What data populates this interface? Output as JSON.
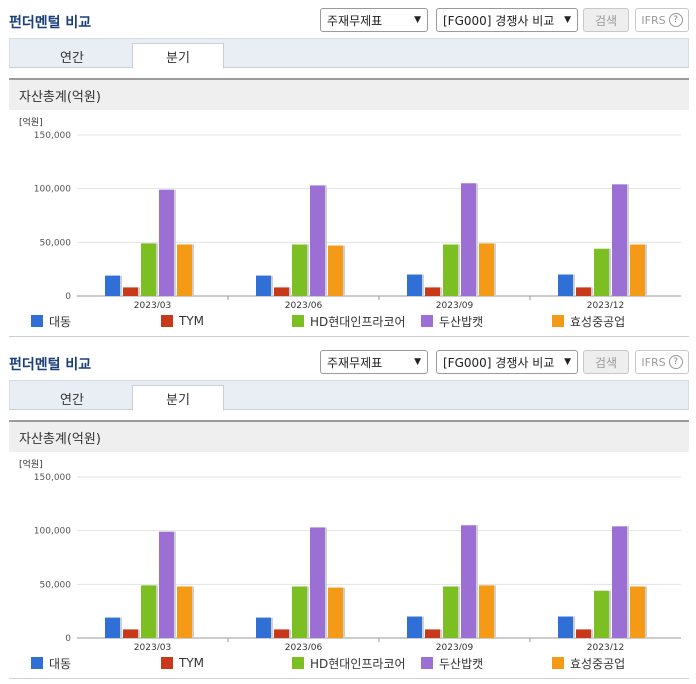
{
  "panels": [
    {
      "title": "펀더멘털 비교",
      "select_statement": "주재무제표",
      "select_compare": "[FG000] 경쟁사 비교",
      "search_label": "검색",
      "ifrs_label": "IFRS",
      "help_glyph": "?",
      "tabs": [
        {
          "label": "연간"
        },
        {
          "label": "분기"
        }
      ],
      "active_tab": 1,
      "section_title": "자산총계(억원)"
    },
    {
      "title": "펀더멘털 비교",
      "select_statement": "주재무제표",
      "select_compare": "[FG000] 경쟁사 비교",
      "search_label": "검색",
      "ifrs_label": "IFRS",
      "help_glyph": "?",
      "tabs": [
        {
          "label": "연간"
        },
        {
          "label": "분기"
        }
      ],
      "active_tab": 1,
      "section_title": "자산총계(억원)"
    }
  ],
  "chart_data": [
    {
      "type": "bar",
      "ylabel": "[억원]",
      "ylim": [
        0,
        150000
      ],
      "yticks": [
        "0",
        "50,000",
        "100,000",
        "150,000"
      ],
      "categories": [
        "2023/03",
        "2023/06",
        "2023/09",
        "2023/12"
      ],
      "series": [
        {
          "name": "대동",
          "color": "#2f6fd6",
          "values": [
            19000,
            19000,
            20000,
            20000
          ]
        },
        {
          "name": "TYM",
          "color": "#c8391a",
          "values": [
            8000,
            8000,
            8000,
            8000
          ]
        },
        {
          "name": "HD현대인프라코어",
          "color": "#7cbf22",
          "values": [
            49000,
            48000,
            48000,
            44000
          ]
        },
        {
          "name": "두산밥캣",
          "color": "#9b6fd3",
          "values": [
            99000,
            103000,
            105000,
            104000
          ]
        },
        {
          "name": "효성중공업",
          "color": "#f59a17",
          "values": [
            48000,
            47000,
            49000,
            48000
          ]
        }
      ],
      "legend_position": "bottom",
      "grid": true
    },
    {
      "type": "bar",
      "ylabel": "[억원]",
      "ylim": [
        0,
        150000
      ],
      "yticks": [
        "0",
        "50,000",
        "100,000",
        "150,000"
      ],
      "categories": [
        "2023/03",
        "2023/06",
        "2023/09",
        "2023/12"
      ],
      "series": [
        {
          "name": "대동",
          "color": "#2f6fd6",
          "values": [
            19000,
            19000,
            20000,
            20000
          ]
        },
        {
          "name": "TYM",
          "color": "#c8391a",
          "values": [
            8000,
            8000,
            8000,
            8000
          ]
        },
        {
          "name": "HD현대인프라코어",
          "color": "#7cbf22",
          "values": [
            49000,
            48000,
            48000,
            44000
          ]
        },
        {
          "name": "두산밥캣",
          "color": "#9b6fd3",
          "values": [
            99000,
            103000,
            105000,
            104000
          ]
        },
        {
          "name": "효성중공업",
          "color": "#f59a17",
          "values": [
            48000,
            47000,
            49000,
            48000
          ]
        }
      ],
      "legend_position": "bottom",
      "grid": true
    }
  ]
}
